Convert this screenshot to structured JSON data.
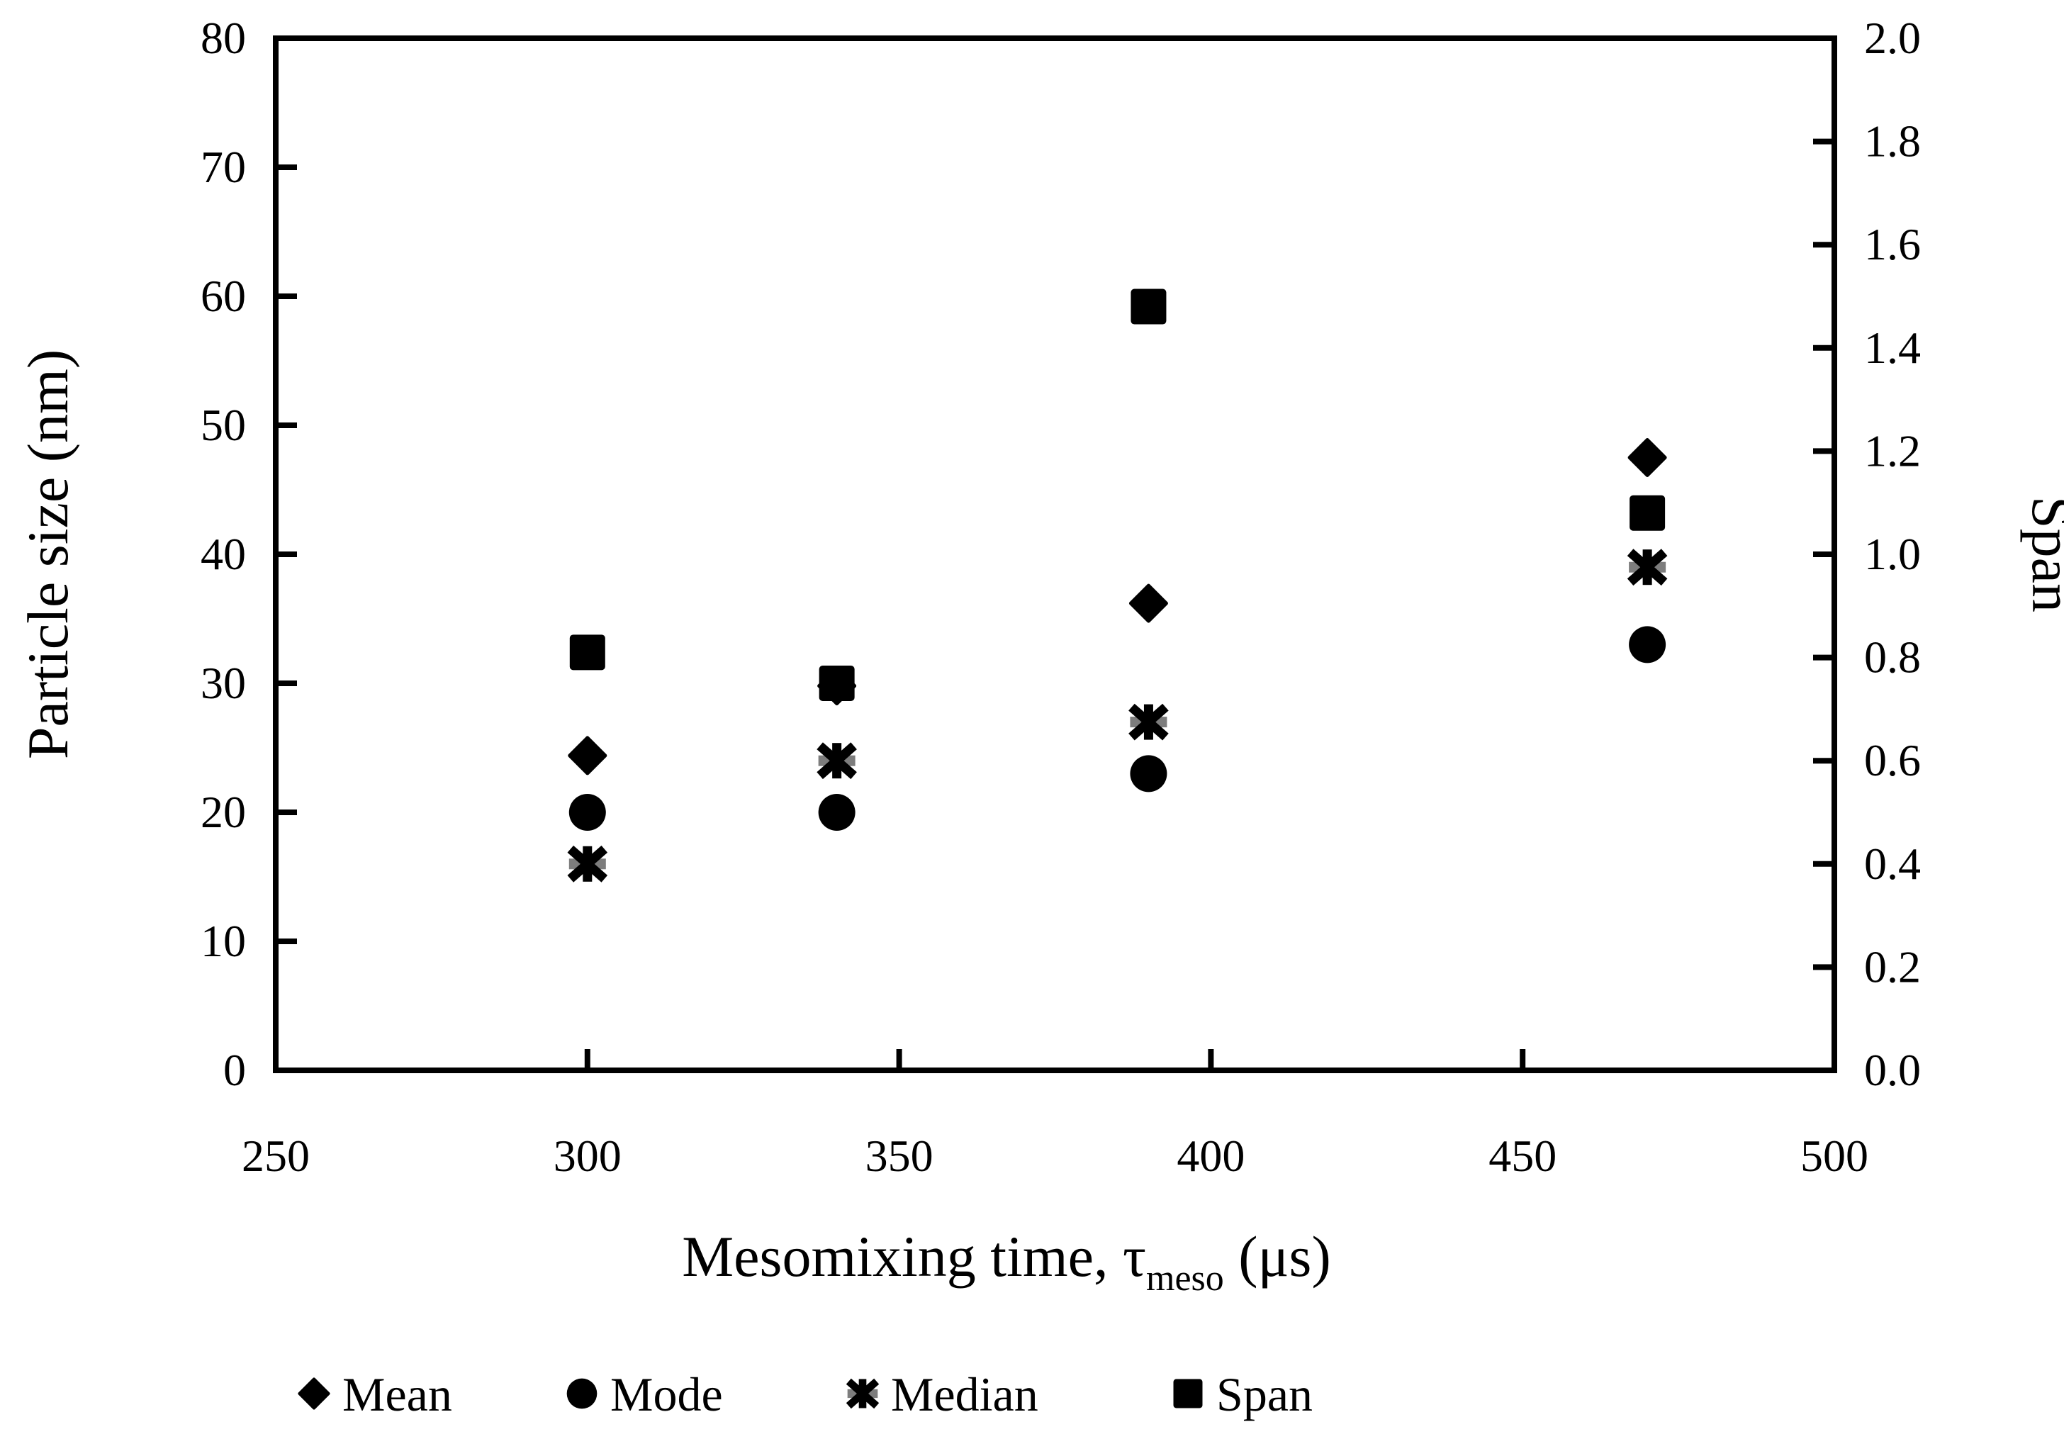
{
  "figure": {
    "background": "#ffffff"
  },
  "chart_data": {
    "type": "scatter",
    "title": "",
    "xlabel": {
      "pre": "Mesomixing time, τ",
      "sub": "meso",
      "post": " (μs)"
    },
    "ylabel_left": "Particle size (nm)",
    "ylabel_right": "Span",
    "x": [
      300,
      340,
      390,
      470
    ],
    "series": [
      {
        "name": "Mean",
        "marker": "diamond",
        "axis": "left",
        "values": [
          24.4,
          29.8,
          36.2,
          47.5
        ]
      },
      {
        "name": "Mode",
        "marker": "circle",
        "axis": "left",
        "values": [
          20,
          20,
          23,
          33
        ]
      },
      {
        "name": "Median",
        "marker": "asterisk",
        "axis": "left",
        "values": [
          16,
          24,
          27,
          39
        ]
      },
      {
        "name": "Span",
        "marker": "square",
        "axis": "right",
        "values": [
          0.81,
          0.75,
          1.48,
          1.08
        ]
      }
    ],
    "axes": {
      "x": {
        "min": 250,
        "max": 500,
        "tick_step": 50,
        "tick_labels": [
          "250",
          "300",
          "350",
          "400",
          "450",
          "500"
        ]
      },
      "y_left": {
        "min": 0,
        "max": 80,
        "tick_step": 10,
        "tick_labels": [
          "0",
          "10",
          "20",
          "30",
          "40",
          "50",
          "60",
          "70",
          "80"
        ]
      },
      "y_right": {
        "min": 0,
        "max": 2,
        "tick_step": 0.2,
        "tick_labels": [
          "0.0",
          "0.2",
          "0.4",
          "0.6",
          "0.8",
          "1.0",
          "1.2",
          "1.4",
          "1.6",
          "1.8",
          "2.0"
        ]
      }
    },
    "legend": {
      "position": "bottom",
      "entries": [
        "Mean",
        "Mode",
        "Median",
        "Span"
      ]
    },
    "grid": "off",
    "colors": {
      "marker": "#000000",
      "asterisk_bar": "#7d7d7d",
      "axis": "#000000",
      "text": "#000000"
    }
  }
}
